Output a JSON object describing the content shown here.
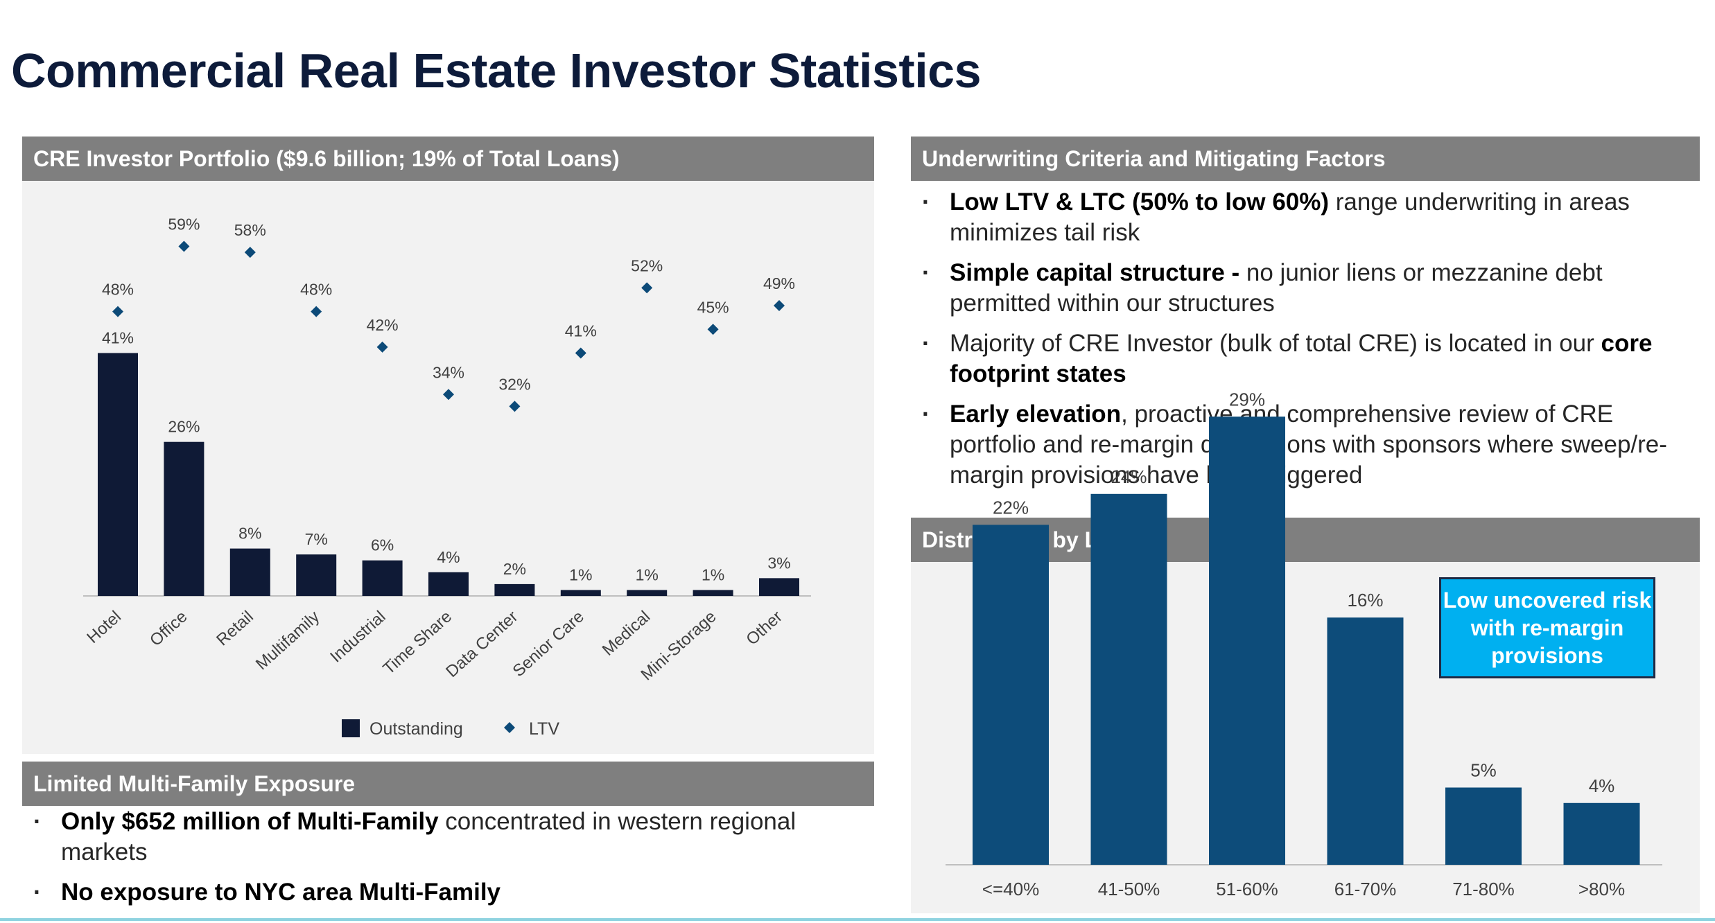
{
  "page": {
    "title": "Commercial Real Estate Investor Statistics"
  },
  "colors": {
    "navy_bar": "#0f1a36",
    "ltv_marker": "#0c4a78",
    "ltv_bar": "#0d4c7a",
    "header_grey": "#7f7f7f",
    "callout_blue": "#00b0f0"
  },
  "portfolio_panel": {
    "header": "CRE Investor Portfolio ($9.6 billion; 19% of Total Loans)"
  },
  "underwriting_panel": {
    "header": "Underwriting Criteria and Mitigating Factors",
    "bullets": [
      {
        "segments": [
          {
            "text": "Low LTV & LTC (50% to low 60%)",
            "bold": true
          },
          {
            "text": " range underwriting in areas minimizes tail risk",
            "bold": false
          }
        ]
      },
      {
        "segments": [
          {
            "text": "Simple capital structure - ",
            "bold": true
          },
          {
            "text": "no junior liens or mezzanine debt permitted within our structures",
            "bold": false
          }
        ]
      },
      {
        "segments": [
          {
            "text": "Majority of CRE Investor (bulk of total CRE) is located in our ",
            "bold": false
          },
          {
            "text": "core footprint states",
            "bold": true
          }
        ]
      },
      {
        "segments": [
          {
            "text": "Early elevation",
            "bold": true
          },
          {
            "text": ", proactive and comprehensive review of CRE portfolio and re-margin discussions with sponsors where sweep/re-margin provisions have been triggered",
            "bold": false
          }
        ]
      }
    ]
  },
  "ltv_panel": {
    "header": "Distribution by LTV",
    "callout": "Low uncovered risk with re-margin provisions"
  },
  "multifamily_panel": {
    "header": "Limited Multi-Family Exposure",
    "bullets": [
      {
        "segments": [
          {
            "text": "Only $652 million of Multi-Family",
            "bold": true
          },
          {
            "text": " concentrated in western regional markets",
            "bold": false
          }
        ]
      },
      {
        "segments": [
          {
            "text": "No exposure to NYC area Multi-Family",
            "bold": true
          }
        ]
      }
    ]
  },
  "chart_data": [
    {
      "type": "bar",
      "categories": [
        "Hotel",
        "Office",
        "Retail",
        "Multifamily",
        "Industrial",
        "Time Share",
        "Data Center",
        "Senior Care",
        "Medical",
        "Mini-Storage",
        "Other"
      ],
      "series": [
        {
          "name": "Outstanding",
          "type": "bar",
          "values": [
            41,
            26,
            8,
            7,
            6,
            4,
            2,
            1,
            1,
            1,
            3
          ],
          "labels": [
            "41%",
            "26%",
            "8%",
            "7%",
            "6%",
            "4%",
            "2%",
            "1%",
            "1%",
            "1%",
            "3%"
          ]
        },
        {
          "name": "LTV",
          "type": "scatter",
          "values": [
            48,
            59,
            58,
            48,
            42,
            34,
            32,
            41,
            52,
            45,
            49
          ],
          "labels": [
            "48%",
            "59%",
            "58%",
            "48%",
            "42%",
            "34%",
            "32%",
            "41%",
            "52%",
            "45%",
            "49%"
          ]
        }
      ],
      "legend": {
        "position": "bottom",
        "entries": [
          "Outstanding",
          "LTV"
        ]
      },
      "title": "",
      "xlabel": "",
      "ylabel": "",
      "grid": false
    },
    {
      "type": "bar",
      "categories": [
        "<=40%",
        "41-50%",
        "51-60%",
        "61-70%",
        "71-80%",
        ">80%"
      ],
      "values": [
        22,
        24,
        29,
        16,
        5,
        4
      ],
      "labels": [
        "22%",
        "24%",
        "29%",
        "16%",
        "5%",
        "4%"
      ],
      "title": "",
      "xlabel": "",
      "ylabel": "",
      "grid": false
    }
  ]
}
